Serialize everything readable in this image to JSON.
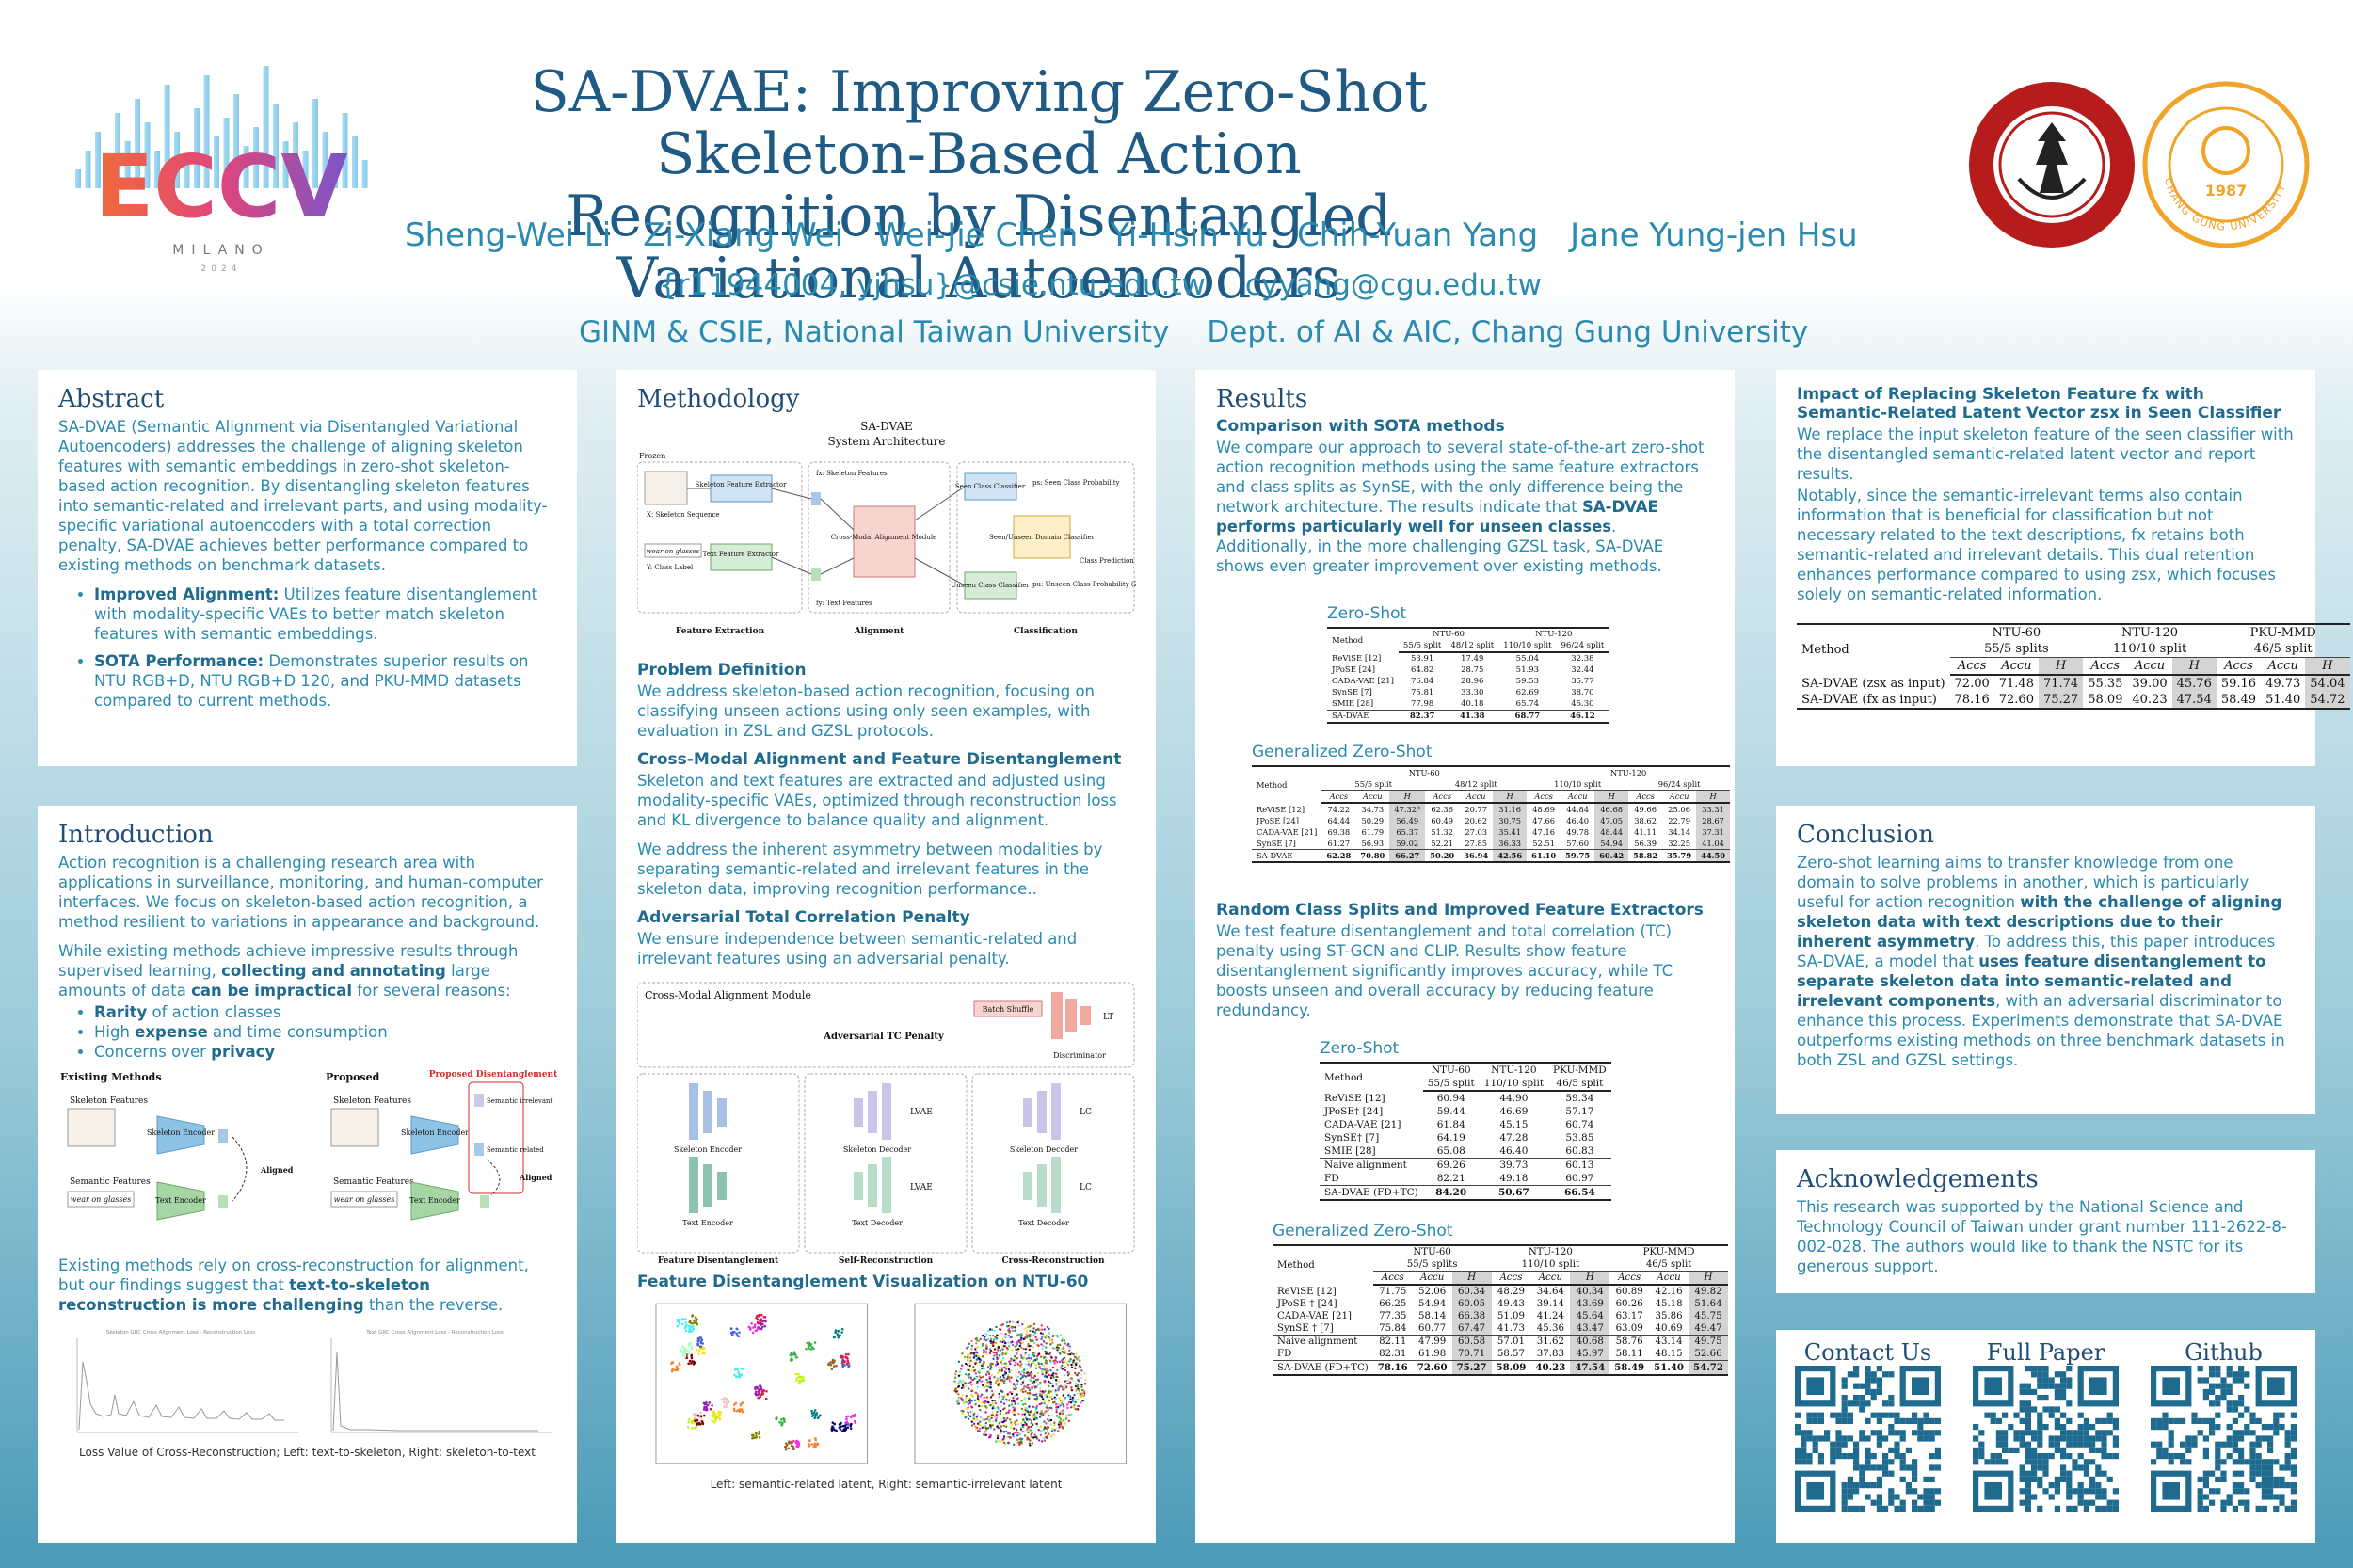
{
  "header": {
    "title_line1": "SA-DVAE: Improving Zero-Shot Skeleton-Based Action",
    "title_line2": "Recognition by Disentangled Variational Autoencoders",
    "authors": [
      "Sheng-Wei Li",
      "Zi-Xiang Wei",
      "Wei-Jie Chen",
      "Yi-Hsin Yu",
      "Chih-Yuan Yang",
      "Jane Yung-jen Hsu"
    ],
    "email_ntu": "{r11944004, yjhsu}@csie.ntu.edu.tw",
    "email_cgu": "cyyang@cgu.edu.tw",
    "affil_ntu": "GINM & CSIE, National Taiwan University",
    "affil_cgu": "Dept. of AI & AIC, Chang Gung University",
    "conf_logo_text": "ECCV",
    "conf_city": "MILANO",
    "conf_year": "2024",
    "cgu_logo_year": "1987",
    "cgu_logo_text": "CHANG GUNG UNIVERSITY"
  },
  "abstract": {
    "heading": "Abstract",
    "text": "SA-DVAE (Semantic Alignment via Disentangled Variational Autoencoders) addresses the challenge of aligning skeleton features with semantic embeddings in zero-shot skeleton-based action recognition. By disentangling skeleton features into semantic-related and irrelevant parts, and using modality-specific variational autoencoders with a total correction penalty, SA-DVAE achieves better performance compared to existing methods on benchmark datasets.",
    "bullets": [
      {
        "bold": "Improved Alignment:",
        "text": " Utilizes feature disentanglement with modality-specific VAEs to better match skeleton features with semantic embeddings."
      },
      {
        "bold": "SOTA Performance:",
        "text": " Demonstrates superior results on NTU RGB+D, NTU RGB+D 120, and PKU-MMD datasets compared to current methods."
      }
    ]
  },
  "intro": {
    "heading": "Introduction",
    "p1": "Action recognition is a challenging research area with applications in surveillance, monitoring, and human-computer interfaces. We focus on skeleton-based action recognition, a method resilient to variations in appearance and background.",
    "p2a": "While existing methods achieve impressive results through supervised learning, ",
    "p2b": "collecting and annotating",
    "p2c": " large amounts of data ",
    "p2d": "can be impractical",
    "p2e": " for several reasons:",
    "bullets": [
      {
        "bold": "Rarity",
        "text": " of action classes"
      },
      {
        "pre": "High ",
        "bold": "expense",
        "text": " and time consumption"
      },
      {
        "pre": "Concerns over ",
        "bold": "privacy",
        "text": ""
      }
    ],
    "fig_existing": "Existing Methods",
    "fig_proposed": "Proposed",
    "fig_proposed_disent": "Proposed Disentanglement",
    "fig_skel": "Skeleton Features",
    "fig_sem": "Semantic Features",
    "fig_skel_enc": "Skeleton Encoder",
    "fig_text_enc": "Text Encoder",
    "fig_wear": "wear on glasses",
    "fig_aligned": "Aligned",
    "fig_irrel": "Semantic irrelevant",
    "fig_rel": "Semantic related",
    "p3a": "Existing methods rely on cross-reconstruction for alignment, but our findings suggest that ",
    "p3b": "text-to-skeleton reconstruction is more challenging",
    "p3c": " than the reverse.",
    "plot_left_title": "Skeleton GRC Cross Alignment Loss - Reconstruction Loss",
    "plot_right_title": "Text GRC Cross Alignment Loss - Reconstruction Loss",
    "caption": "Loss Value of Cross-Reconstruction; Left: text-to-skeleton, Right: skeleton-to-text"
  },
  "method": {
    "heading": "Methodology",
    "arch_title1": "SA-DVAE",
    "arch_title2": "System Architecture",
    "arch_frozen": "Frozen",
    "arch_skel_fe": "Skeleton Feature Extractor",
    "arch_text_fe": "Text Feature Extractor",
    "arch_skel_seq": "X: Skeleton Sequence",
    "arch_class_label": "Y: Class Label",
    "arch_wear": "wear on glasses",
    "arch_fx": "fx: Skeleton Features",
    "arch_fy": "fy: Text Features",
    "arch_cma": "Cross-Modal Alignment Module",
    "arch_seen": "Seen Class Classifier",
    "arch_unseen": "Unseen Class Classifier",
    "arch_domain": "Seen/Unseen Domain Classifier",
    "arch_ps": "ps: Seen Class Probability",
    "arch_pu": "pu: Unseen Class Probability (ZSL)",
    "arch_pred": "Class Prediction (GZSL)",
    "arch_fe": "Feature Extraction",
    "arch_align": "Alignment",
    "arch_cls": "Classification",
    "pd_head": "Problem Definition",
    "pd_text": "We address skeleton-based action recognition, focusing on classifying unseen actions using only seen examples, with evaluation in ZSL and GZSL protocols.",
    "cma_head": "Cross-Modal Alignment and Feature Disentanglement",
    "cma_text1": "Skeleton and text features are extracted and adjusted using modality-specific VAEs, optimized through reconstruction loss and KL divergence to balance quality and alignment.",
    "cma_text2": "We address the inherent asymmetry between modalities by separating semantic-related and irrelevant features in the skeleton data, improving recognition performance..",
    "atc_head": "Adversarial Total Correlation Penalty",
    "atc_text": "We ensure independence between semantic-related and irrelevant features using an adversarial penalty.",
    "fig2_cma": "Cross-Modal Alignment Module",
    "fig2_batch": "Batch Shuffle",
    "fig2_disc": "Discriminator",
    "fig2_adv": "Adversarial TC Penalty",
    "fig2_fd": "Feature Disentanglement",
    "fig2_sr": "Self-Reconstruction",
    "fig2_cr": "Cross-Reconstruction",
    "fig2_se": "Skeleton Encoder",
    "fig2_te": "Text Encoder",
    "fig2_sd": "Skeleton Decoder",
    "fig2_td": "Text Decoder",
    "fig2_lt": "LT",
    "fig2_lvae": "LVAE",
    "fig2_lc": "LC",
    "vis_head": "Feature Disentanglement Visualization on NTU-60",
    "vis_caption": "Left: semantic-related latent, Right: semantic-irrelevant latent"
  },
  "results": {
    "heading": "Results",
    "cmp_head": "Comparison with SOTA methods",
    "cmp_text1": "We compare our approach to several state-of-the-art zero-shot action recognition methods using the same feature extractors and class splits as SynSE, with the only difference being the network architecture. The results indicate that ",
    "cmp_bold": "SA-DVAE performs particularly well for unseen classes",
    "cmp_text2": ". Additionally, in the more challenging GZSL task, SA-DVAE shows even greater improvement over existing methods.",
    "zs_title": "Zero-Shot",
    "gzs_title": "Generalized Zero-Shot",
    "rand_head": "Random Class Splits and Improved Feature Extractors",
    "rand_text": "We test feature disentanglement and total correlation (TC) penalty using ST-GCN and CLIP. Results show feature disentanglement significantly improves accuracy, while TC boosts unseen and overall accuracy by reducing feature redundancy.",
    "zs2_title": "Zero-Shot",
    "gzs2_title": "Generalized Zero-Shot"
  },
  "tables": {
    "zs1": {
      "method": "Method",
      "groups": [
        "NTU-60",
        "NTU-120"
      ],
      "splits": [
        "55/5 split",
        "48/12 split",
        "110/10 split",
        "96/24 split"
      ],
      "rows": [
        {
          "m": "ReViSE [12]",
          "v": [
            "53.91",
            "17.49",
            "55.04",
            "32.38"
          ]
        },
        {
          "m": "JPoSE [24]",
          "v": [
            "64.82",
            "28.75",
            "51.93",
            "32.44"
          ]
        },
        {
          "m": "CADA-VAE [21]",
          "v": [
            "76.84",
            "28.96",
            "59.53",
            "35.77"
          ]
        },
        {
          "m": "SynSE [7]",
          "v": [
            "75.81",
            "33.30",
            "62.69",
            "38.70"
          ]
        },
        {
          "m": "SMIE [28]",
          "v": [
            "77.98",
            "40.18",
            "65.74",
            "45.30"
          ]
        }
      ],
      "ours": {
        "m": "SA-DVAE",
        "v": [
          "82.37",
          "41.38",
          "68.77",
          "46.12"
        ]
      }
    },
    "gzs1": {
      "method": "Method",
      "groups": [
        "NTU-60",
        "NTU-120"
      ],
      "splits": [
        "55/5 split",
        "48/12 split",
        "110/10 split",
        "96/24 split"
      ],
      "sub": [
        "Accs",
        "Accu",
        "H"
      ],
      "rows": [
        {
          "m": "ReViSE [12]",
          "v": [
            "74.22",
            "34.73",
            "47.32*",
            "62.36",
            "20.77",
            "31.16",
            "48.69",
            "44.84",
            "46.68",
            "49.66",
            "25.06",
            "33.31"
          ]
        },
        {
          "m": "JPoSE [24]",
          "v": [
            "64.44",
            "50.29",
            "56.49",
            "60.49",
            "20.62",
            "30.75",
            "47.66",
            "46.40",
            "47.05",
            "38.62",
            "22.79",
            "28.67"
          ]
        },
        {
          "m": "CADA-VAE [21]",
          "v": [
            "69.38",
            "61.79",
            "65.37",
            "51.32",
            "27.03",
            "35.41",
            "47.16",
            "49.78",
            "48.44",
            "41.11",
            "34.14",
            "37.31"
          ]
        },
        {
          "m": "SynSE [7]",
          "v": [
            "61.27",
            "56.93",
            "59.02",
            "52.21",
            "27.85",
            "36.33",
            "52.51",
            "57.60",
            "54.94",
            "56.39",
            "32.25",
            "41.04"
          ]
        }
      ],
      "ours": {
        "m": "SA-DVAE",
        "v": [
          "62.28",
          "70.80",
          "66.27",
          "50.20",
          "36.94",
          "42.56",
          "61.10",
          "59.75",
          "60.42",
          "58.82",
          "35.79",
          "44.50"
        ]
      }
    },
    "zs2": {
      "method": "Method",
      "groups": [
        "NTU-60",
        "NTU-120",
        "PKU-MMD"
      ],
      "splits": [
        "55/5 split",
        "110/10 split",
        "46/5 split"
      ],
      "rows": [
        {
          "m": "ReViSE [12]",
          "v": [
            "60.94",
            "44.90",
            "59.34"
          ]
        },
        {
          "m": "JPoSE† [24]",
          "v": [
            "59.44",
            "46.69",
            "57.17"
          ]
        },
        {
          "m": "CADA-VAE [21]",
          "v": [
            "61.84",
            "45.15",
            "60.74"
          ]
        },
        {
          "m": "SynSE† [7]",
          "v": [
            "64.19",
            "47.28",
            "53.85"
          ]
        },
        {
          "m": "SMIE [28]",
          "v": [
            "65.08",
            "46.40",
            "60.83"
          ]
        }
      ],
      "rows2": [
        {
          "m": "Naive alignment",
          "v": [
            "69.26",
            "39.73",
            "60.13"
          ]
        },
        {
          "m": "FD",
          "v": [
            "82.21",
            "49.18",
            "60.97"
          ]
        }
      ],
      "ours": {
        "m": "SA-DVAE (FD+TC)",
        "v": [
          "84.20",
          "50.67",
          "66.54"
        ]
      }
    },
    "gzs2": {
      "method": "Method",
      "groups": [
        "NTU-60",
        "NTU-120",
        "PKU-MMD"
      ],
      "splits": [
        "55/5 splits",
        "110/10 split",
        "46/5 split"
      ],
      "sub": [
        "Accs",
        "Accu",
        "H"
      ],
      "rows": [
        {
          "m": "ReViSE [12]",
          "v": [
            "71.75",
            "52.06",
            "60.34",
            "48.29",
            "34.64",
            "40.34",
            "60.89",
            "42.16",
            "49.82"
          ]
        },
        {
          "m": "JPoSE † [24]",
          "v": [
            "66.25",
            "54.94",
            "60.05",
            "49.43",
            "39.14",
            "43.69",
            "60.26",
            "45.18",
            "51.64"
          ]
        },
        {
          "m": "CADA-VAE [21]",
          "v": [
            "77.35",
            "58.14",
            "66.38",
            "51.09",
            "41.24",
            "45.64",
            "63.17",
            "35.86",
            "45.75"
          ]
        },
        {
          "m": "SynSE † [7]",
          "v": [
            "75.84",
            "60.77",
            "67.47",
            "41.73",
            "45.36",
            "43.47",
            "63.09",
            "40.69",
            "49.47"
          ]
        }
      ],
      "rows2": [
        {
          "m": "Naive alignment",
          "v": [
            "82.11",
            "47.99",
            "60.58",
            "57.01",
            "31.62",
            "40.68",
            "58.76",
            "43.14",
            "49.75"
          ]
        },
        {
          "m": "FD",
          "v": [
            "82.31",
            "61.98",
            "70.71",
            "58.57",
            "37.83",
            "45.97",
            "58.11",
            "48.15",
            "52.66"
          ]
        }
      ],
      "ours": {
        "m": "SA-DVAE (FD+TC)",
        "v": [
          "78.16",
          "72.60",
          "75.27",
          "58.09",
          "40.23",
          "47.54",
          "58.49",
          "51.40",
          "54.72"
        ]
      }
    },
    "impact": {
      "method": "Method",
      "groups": [
        "NTU-60",
        "NTU-120",
        "PKU-MMD"
      ],
      "splits": [
        "55/5 splits",
        "110/10 split",
        "46/5 split"
      ],
      "sub": [
        "Accs",
        "Accu",
        "H"
      ],
      "rows": [
        {
          "m": "SA-DVAE (zsx as input)",
          "v": [
            "72.00",
            "71.48",
            "71.74",
            "55.35",
            "39.00",
            "45.76",
            "59.16",
            "49.73",
            "54.04"
          ]
        },
        {
          "m": "SA-DVAE (fx as input)",
          "v": [
            "78.16",
            "72.60",
            "75.27",
            "58.09",
            "40.23",
            "47.54",
            "58.49",
            "51.40",
            "54.72"
          ]
        }
      ]
    }
  },
  "impact": {
    "heading": "Impact of Replacing Skeleton Feature fx with Semantic-Related Latent Vector zsx in Seen Classifier",
    "p1": "We replace the input skeleton feature of the seen classifier with the disentangled semantic-related latent vector and report results.",
    "p2": "Notably, since the semantic-irrelevant terms also contain information that is beneficial for classification but not necessary related to the text descriptions, fx retains both semantic-related and irrelevant details. This dual retention enhances performance compared to using zsx, which focuses solely on semantic-related information."
  },
  "conclusion": {
    "heading": "Conclusion",
    "t1": "Zero-shot learning aims to transfer knowledge from one domain to solve problems in another, which is particularly useful for action recognition ",
    "b1": "with the challenge of aligning skeleton data with text descriptions due to their inherent asymmetry",
    "t2": ". To address this, this paper introduces SA-DVAE, a model that ",
    "b2": "uses feature disentanglement to separate skeleton data into semantic-related and irrelevant components",
    "t3": ", with an adversarial discriminator to enhance this process. Experiments demonstrate that SA-DVAE outperforms existing methods on three benchmark datasets in both ZSL and GZSL settings."
  },
  "ack": {
    "heading": "Acknowledgements",
    "text": "This research was supported by the National Science and Technology Council of Taiwan under grant number 111-2622-8-002-028. The authors would like to thank the NSTC for its generous support."
  },
  "links": {
    "contact": "Contact Us",
    "paper": "Full Paper",
    "github": "Github"
  },
  "colors": {
    "accent": "#1f6a8f",
    "text": "#2a8ab0",
    "heading": "#1f4d75"
  }
}
